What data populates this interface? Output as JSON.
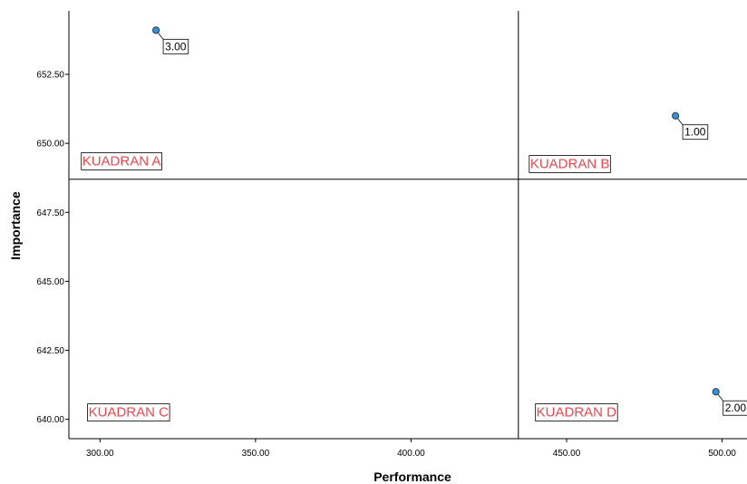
{
  "chart_data": {
    "type": "scatter",
    "title": "",
    "xlabel": "Performance",
    "ylabel": "Importance",
    "xlim": [
      290,
      508
    ],
    "ylim": [
      639.3,
      654.8
    ],
    "x_ticks": [
      "300.00",
      "350.00",
      "400.00",
      "450.00",
      "500.00"
    ],
    "y_ticks": [
      "640.00",
      "642.50",
      "645.00",
      "647.50",
      "650.00",
      "652.50"
    ],
    "points": [
      {
        "x": 318,
        "y": 654.1,
        "label": "3.00"
      },
      {
        "x": 485,
        "y": 651.0,
        "label": "1.00"
      },
      {
        "x": 498,
        "y": 641.0,
        "label": "2.00"
      }
    ],
    "reference_lines": {
      "x": 434.5,
      "y": 648.7
    },
    "quadrants": [
      {
        "label": "KUADRAN A",
        "x": 294,
        "y": 649.4
      },
      {
        "label": "KUADRAN B",
        "x": 438,
        "y": 649.3
      },
      {
        "label": "KUADRAN C",
        "x": 296,
        "y": 640.3
      },
      {
        "label": "KUADRAN D",
        "x": 440,
        "y": 640.3
      }
    ],
    "grid": false,
    "legend": "none",
    "colors": {
      "point_fill": "#3a8fd0",
      "point_stroke": "#1f3f60",
      "quadrant_text": "#e8474f"
    }
  }
}
